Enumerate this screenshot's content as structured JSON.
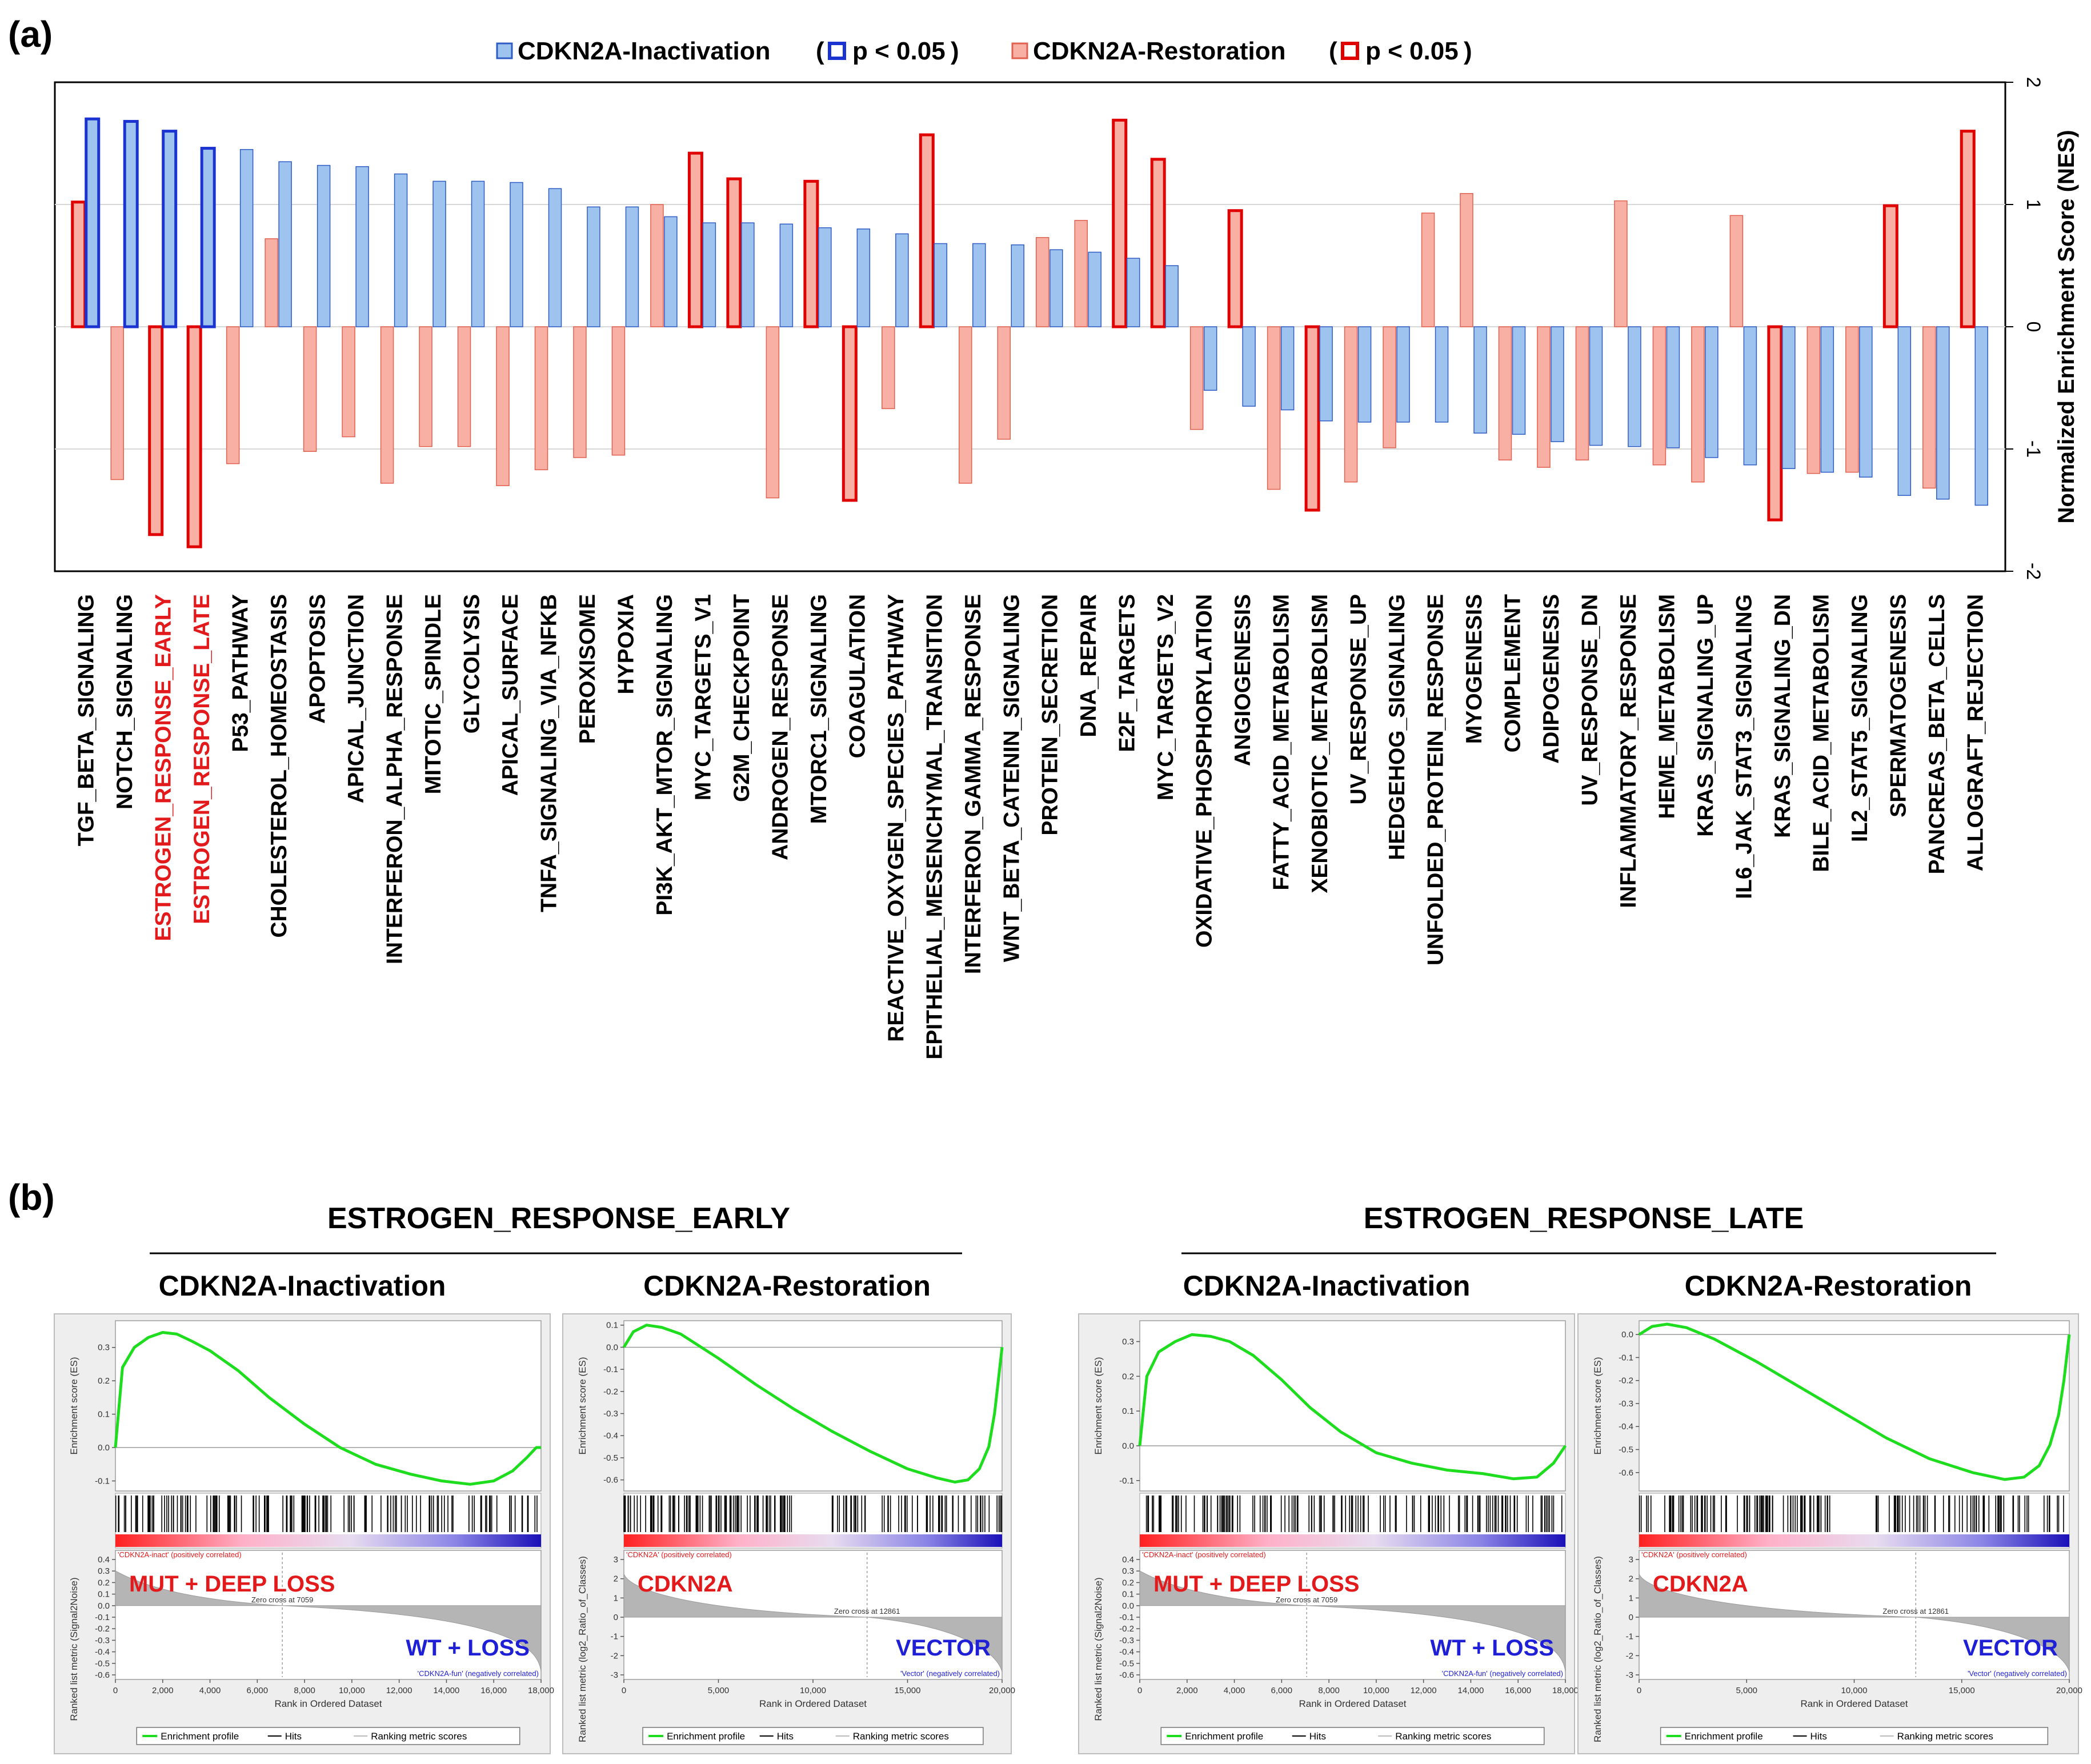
{
  "panel_a_label": "(a)",
  "panel_b_label": "(b)",
  "chart_data": [
    {
      "type": "bar",
      "title": "",
      "ylabel": "Normalized Enrichment Score (NES)",
      "ylim": [
        -2,
        2
      ],
      "yticks": [
        "2",
        "1",
        "0",
        "-1",
        "-2"
      ],
      "legend": {
        "inactivation_label": "CDKN2A-Inactivation",
        "inactivation_sig": "p < 0.05",
        "restoration_label": "CDKN2A-Restoration",
        "restoration_sig": "p < 0.05"
      },
      "colors": {
        "inactivation_fill": "#9ec3ef",
        "inactivation_edge": "#2f5cc4",
        "inactivation_sig_edge": "#1a33d1",
        "restoration_fill": "#f7b0a3",
        "restoration_edge": "#e1604f",
        "restoration_sig_edge": "#e00000",
        "highlight_label": "#e31a1c"
      },
      "highlighted": [
        "ESTROGEN_RESPONSE_EARLY",
        "ESTROGEN_RESPONSE_LATE"
      ],
      "categories": [
        "TGF_BETA_SIGNALING",
        "NOTCH_SIGNALING",
        "ESTROGEN_RESPONSE_EARLY",
        "ESTROGEN_RESPONSE_LATE",
        "P53_PATHWAY",
        "CHOLESTEROL_HOMEOSTASIS",
        "APOPTOSIS",
        "APICAL_JUNCTION",
        "INTERFERON_ALPHA_RESPONSE",
        "MITOTIC_SPINDLE",
        "GLYCOLYSIS",
        "APICAL_SURFACE",
        "TNFA_SIGNALING_VIA_NFKB",
        "PEROXISOME",
        "HYPOXIA",
        "PI3K_AKT_MTOR_SIGNALING",
        "MYC_TARGETS_V1",
        "G2M_CHECKPOINT",
        "ANDROGEN_RESPONSE",
        "MTORC1_SIGNALING",
        "COAGULATION",
        "REACTIVE_OXYGEN_SPECIES_PATHWAY",
        "EPITHELIAL_MESENCHYMAL_TRANSITION",
        "INTERFERON_GAMMA_RESPONSE",
        "WNT_BETA_CATENIN_SIGNALING",
        "PROTEIN_SECRETION",
        "DNA_REPAIR",
        "E2F_TARGETS",
        "MYC_TARGETS_V2",
        "OXIDATIVE_PHOSPHORYLATION",
        "ANGIOGENESIS",
        "FATTY_ACID_METABOLISM",
        "XENOBIOTIC_METABOLISM",
        "UV_RESPONSE_UP",
        "HEDGEHOG_SIGNALING",
        "UNFOLDED_PROTEIN_RESPONSE",
        "MYOGENESIS",
        "COMPLEMENT",
        "ADIPOGENESIS",
        "UV_RESPONSE_DN",
        "INFLAMMATORY_RESPONSE",
        "HEME_METABOLISM",
        "KRAS_SIGNALING_UP",
        "IL6_JAK_STAT3_SIGNALING",
        "KRAS_SIGNALING_DN",
        "BILE_ACID_METABOLISM",
        "IL2_STAT5_SIGNALING",
        "SPERMATOGENESIS",
        "PANCREAS_BETA_CELLS",
        "ALLOGRAFT_REJECTION"
      ],
      "series": [
        {
          "name": "CDKN2A-Restoration",
          "values": [
            1.02,
            -1.25,
            -1.7,
            -1.8,
            -1.12,
            0.72,
            -1.02,
            -0.9,
            -1.28,
            -0.98,
            -0.98,
            -1.3,
            -1.17,
            -1.07,
            -1.05,
            1.0,
            1.42,
            1.21,
            -1.4,
            1.19,
            -1.42,
            -0.67,
            1.57,
            -1.28,
            -0.92,
            0.73,
            0.87,
            1.69,
            1.37,
            -0.84,
            0.95,
            -1.33,
            -1.5,
            -1.27,
            -0.99,
            0.93,
            1.09,
            -1.09,
            -1.15,
            -1.09,
            1.03,
            -1.13,
            -1.27,
            0.91,
            -1.58,
            -1.2,
            -1.19,
            0.99,
            -1.32,
            1.6
          ],
          "significant": [
            true,
            false,
            true,
            true,
            false,
            false,
            false,
            false,
            false,
            false,
            false,
            false,
            false,
            false,
            false,
            false,
            true,
            true,
            false,
            true,
            true,
            false,
            true,
            false,
            false,
            false,
            false,
            true,
            true,
            false,
            true,
            false,
            true,
            false,
            false,
            false,
            false,
            false,
            false,
            false,
            false,
            false,
            false,
            false,
            true,
            false,
            false,
            true,
            false,
            true
          ]
        },
        {
          "name": "CDKN2A-Inactivation",
          "values": [
            1.7,
            1.68,
            1.6,
            1.46,
            1.45,
            1.35,
            1.32,
            1.31,
            1.25,
            1.19,
            1.19,
            1.18,
            1.13,
            0.98,
            0.98,
            0.9,
            0.85,
            0.85,
            0.84,
            0.81,
            0.8,
            0.76,
            0.68,
            0.68,
            0.67,
            0.63,
            0.61,
            0.56,
            0.5,
            -0.52,
            -0.65,
            -0.68,
            -0.77,
            -0.78,
            -0.78,
            -0.78,
            -0.87,
            -0.88,
            -0.94,
            -0.97,
            -0.98,
            -0.99,
            -1.07,
            -1.13,
            -1.16,
            -1.19,
            -1.23,
            -1.38,
            -1.41,
            -1.46
          ],
          "significant": [
            true,
            true,
            true,
            true,
            false,
            false,
            false,
            false,
            false,
            false,
            false,
            false,
            false,
            false,
            false,
            false,
            false,
            false,
            false,
            false,
            false,
            false,
            false,
            false,
            false,
            false,
            false,
            false,
            false,
            false,
            false,
            false,
            false,
            false,
            false,
            false,
            false,
            false,
            false,
            false,
            false,
            false,
            false,
            false,
            false,
            false,
            false,
            false,
            false,
            false
          ]
        }
      ]
    },
    {
      "type": "line",
      "group_title": "ESTROGEN_RESPONSE_EARLY",
      "subtitle": "CDKN2A-Inactivation",
      "ylabel_es": "Enrichment score (ES)",
      "ylabel_metric": "Ranked list metric (Signal2Noise)",
      "xlabel": "Rank in Ordered Dataset",
      "xmax": 18000,
      "es_ylim": [
        -0.13,
        0.38
      ],
      "es_yticks": [
        "0.3",
        "0.2",
        "0.1",
        "0.0",
        "-0.1"
      ],
      "es_ytick_values": [
        0.3,
        0.2,
        0.1,
        0.0,
        -0.1
      ],
      "metric_yticks": [
        "0.4",
        "0.3",
        "0.2",
        "0.1",
        "0.0",
        "-0.1",
        "-0.2",
        "-0.3",
        "-0.4",
        "-0.5",
        "-0.6"
      ],
      "metric_ytick_values": [
        0.4,
        0.3,
        0.2,
        0.1,
        0.0,
        -0.1,
        -0.2,
        -0.3,
        -0.4,
        -0.5,
        -0.6
      ],
      "xticks": [
        "0",
        "2,000",
        "4,000",
        "6,000",
        "8,000",
        "10,000",
        "12,000",
        "14,000",
        "16,000",
        "18,000"
      ],
      "xtick_values": [
        0,
        2000,
        4000,
        6000,
        8000,
        10000,
        12000,
        14000,
        16000,
        18000
      ],
      "es_x": [
        0,
        300,
        800,
        1400,
        2000,
        2600,
        3200,
        4000,
        5200,
        6500,
        8000,
        9500,
        11000,
        12500,
        13800,
        15000,
        16000,
        16800,
        17400,
        17800,
        18000
      ],
      "es_y": [
        0.0,
        0.24,
        0.3,
        0.33,
        0.345,
        0.34,
        0.32,
        0.29,
        0.23,
        0.15,
        0.07,
        0.0,
        -0.05,
        -0.08,
        -0.1,
        -0.11,
        -0.1,
        -0.07,
        -0.03,
        0.0,
        0.0
      ],
      "zero_cross": "Zero cross at 7059",
      "zero_cross_value": 7059,
      "pos_label": "'CDKN2A-inact' (positively correlated)",
      "neg_label": "'CDKN2A-fun' (negatively correlated)",
      "pos_group": "MUT + DEEP LOSS",
      "neg_group": "WT + LOSS",
      "legend_items": [
        "Enrichment profile",
        "Hits",
        "Ranking metric scores"
      ]
    },
    {
      "type": "line",
      "group_title": "ESTROGEN_RESPONSE_EARLY",
      "subtitle": "CDKN2A-Restoration",
      "ylabel_es": "Enrichment score (ES)",
      "ylabel_metric": "Ranked list metric (log2_Ratio_of_Classes)",
      "xlabel": "Rank in Ordered Dataset",
      "xmax": 20000,
      "es_ylim": [
        -0.65,
        0.12
      ],
      "es_yticks": [
        "0.1",
        "0.0",
        "-0.1",
        "-0.2",
        "-0.3",
        "-0.4",
        "-0.5",
        "-0.6"
      ],
      "es_ytick_values": [
        0.1,
        0.0,
        -0.1,
        -0.2,
        -0.3,
        -0.4,
        -0.5,
        -0.6
      ],
      "metric_yticks": [
        "3",
        "2",
        "1",
        "0",
        "-1",
        "-2",
        "-3"
      ],
      "metric_ytick_values": [
        3,
        2,
        1,
        0,
        -1,
        -2,
        -3
      ],
      "xticks": [
        "0",
        "5,000",
        "10,000",
        "15,000",
        "20,000"
      ],
      "xtick_values": [
        0,
        5000,
        10000,
        15000,
        20000
      ],
      "es_x": [
        0,
        500,
        1200,
        2000,
        3000,
        5000,
        7000,
        9000,
        11000,
        13000,
        15000,
        16500,
        17500,
        18200,
        18800,
        19300,
        19600,
        19800,
        20000
      ],
      "es_y": [
        0.0,
        0.07,
        0.1,
        0.09,
        0.06,
        -0.05,
        -0.17,
        -0.28,
        -0.38,
        -0.47,
        -0.55,
        -0.59,
        -0.61,
        -0.6,
        -0.55,
        -0.45,
        -0.3,
        -0.15,
        0.0
      ],
      "zero_cross": "Zero cross at 12861",
      "zero_cross_value": 12861,
      "pos_label": "'CDKN2A' (positively correlated)",
      "neg_label": "'Vector' (negatively correlated)",
      "pos_group": "CDKN2A",
      "neg_group": "VECTOR",
      "legend_items": [
        "Enrichment profile",
        "Hits",
        "Ranking metric scores"
      ]
    },
    {
      "type": "line",
      "group_title": "ESTROGEN_RESPONSE_LATE",
      "subtitle": "CDKN2A-Inactivation",
      "ylabel_es": "Enrichment score (ES)",
      "ylabel_metric": "Ranked list metric (Signal2Noise)",
      "xlabel": "Rank in Ordered Dataset",
      "xmax": 18000,
      "es_ylim": [
        -0.13,
        0.36
      ],
      "es_yticks": [
        "0.3",
        "0.2",
        "0.1",
        "0.0",
        "-0.1"
      ],
      "es_ytick_values": [
        0.3,
        0.2,
        0.1,
        0.0,
        -0.1
      ],
      "metric_yticks": [
        "0.4",
        "0.3",
        "0.2",
        "0.1",
        "0.0",
        "-0.1",
        "-0.2",
        "-0.3",
        "-0.4",
        "-0.5",
        "-0.6"
      ],
      "metric_ytick_values": [
        0.4,
        0.3,
        0.2,
        0.1,
        0.0,
        -0.1,
        -0.2,
        -0.3,
        -0.4,
        -0.5,
        -0.6
      ],
      "xticks": [
        "0",
        "2,000",
        "4,000",
        "6,000",
        "8,000",
        "10,000",
        "12,000",
        "14,000",
        "16,000",
        "18,000"
      ],
      "xtick_values": [
        0,
        2000,
        4000,
        6000,
        8000,
        10000,
        12000,
        14000,
        16000,
        18000
      ],
      "es_x": [
        0,
        300,
        800,
        1500,
        2200,
        3000,
        3800,
        4800,
        6000,
        7200,
        8500,
        10000,
        11500,
        13000,
        14500,
        15800,
        16800,
        17500,
        18000
      ],
      "es_y": [
        0.0,
        0.2,
        0.27,
        0.3,
        0.32,
        0.315,
        0.3,
        0.26,
        0.19,
        0.11,
        0.04,
        -0.02,
        -0.05,
        -0.07,
        -0.08,
        -0.095,
        -0.09,
        -0.05,
        0.0
      ],
      "zero_cross": "Zero cross at 7059",
      "zero_cross_value": 7059,
      "pos_label": "'CDKN2A-inact' (positively correlated)",
      "neg_label": "'CDKN2A-fun' (negatively correlated)",
      "pos_group": "MUT + DEEP LOSS",
      "neg_group": "WT + LOSS",
      "legend_items": [
        "Enrichment profile",
        "Hits",
        "Ranking metric scores"
      ]
    },
    {
      "type": "line",
      "group_title": "ESTROGEN_RESPONSE_LATE",
      "subtitle": "CDKN2A-Restoration",
      "ylabel_es": "Enrichment score (ES)",
      "ylabel_metric": "Ranked list metric (log2_Ratio_of_Classes)",
      "xlabel": "Rank in Ordered Dataset",
      "xmax": 20000,
      "es_ylim": [
        -0.68,
        0.06
      ],
      "es_yticks": [
        "0.0",
        "-0.1",
        "-0.2",
        "-0.3",
        "-0.4",
        "-0.5",
        "-0.6"
      ],
      "es_ytick_values": [
        0.0,
        -0.1,
        -0.2,
        -0.3,
        -0.4,
        -0.5,
        -0.6
      ],
      "metric_yticks": [
        "3",
        "2",
        "1",
        "0",
        "-1",
        "-2",
        "-3"
      ],
      "metric_ytick_values": [
        3,
        2,
        1,
        0,
        -1,
        -2,
        -3
      ],
      "xticks": [
        "0",
        "5,000",
        "10,000",
        "15,000",
        "20,000"
      ],
      "xtick_values": [
        0,
        5000,
        10000,
        15000,
        20000
      ],
      "es_x": [
        0,
        600,
        1300,
        2200,
        3500,
        5500,
        7500,
        9500,
        11500,
        13500,
        15500,
        17000,
        17900,
        18600,
        19100,
        19500,
        19750,
        20000
      ],
      "es_y": [
        0.0,
        0.035,
        0.045,
        0.03,
        -0.02,
        -0.12,
        -0.23,
        -0.34,
        -0.45,
        -0.54,
        -0.6,
        -0.63,
        -0.62,
        -0.57,
        -0.48,
        -0.35,
        -0.2,
        0.0
      ],
      "zero_cross": "Zero cross at 12861",
      "zero_cross_value": 12861,
      "pos_label": "'CDKN2A' (positively correlated)",
      "neg_label": "'Vector' (negatively correlated)",
      "pos_group": "CDKN2A",
      "neg_group": "VECTOR",
      "legend_items": [
        "Enrichment profile",
        "Hits",
        "Ranking metric scores"
      ]
    }
  ]
}
